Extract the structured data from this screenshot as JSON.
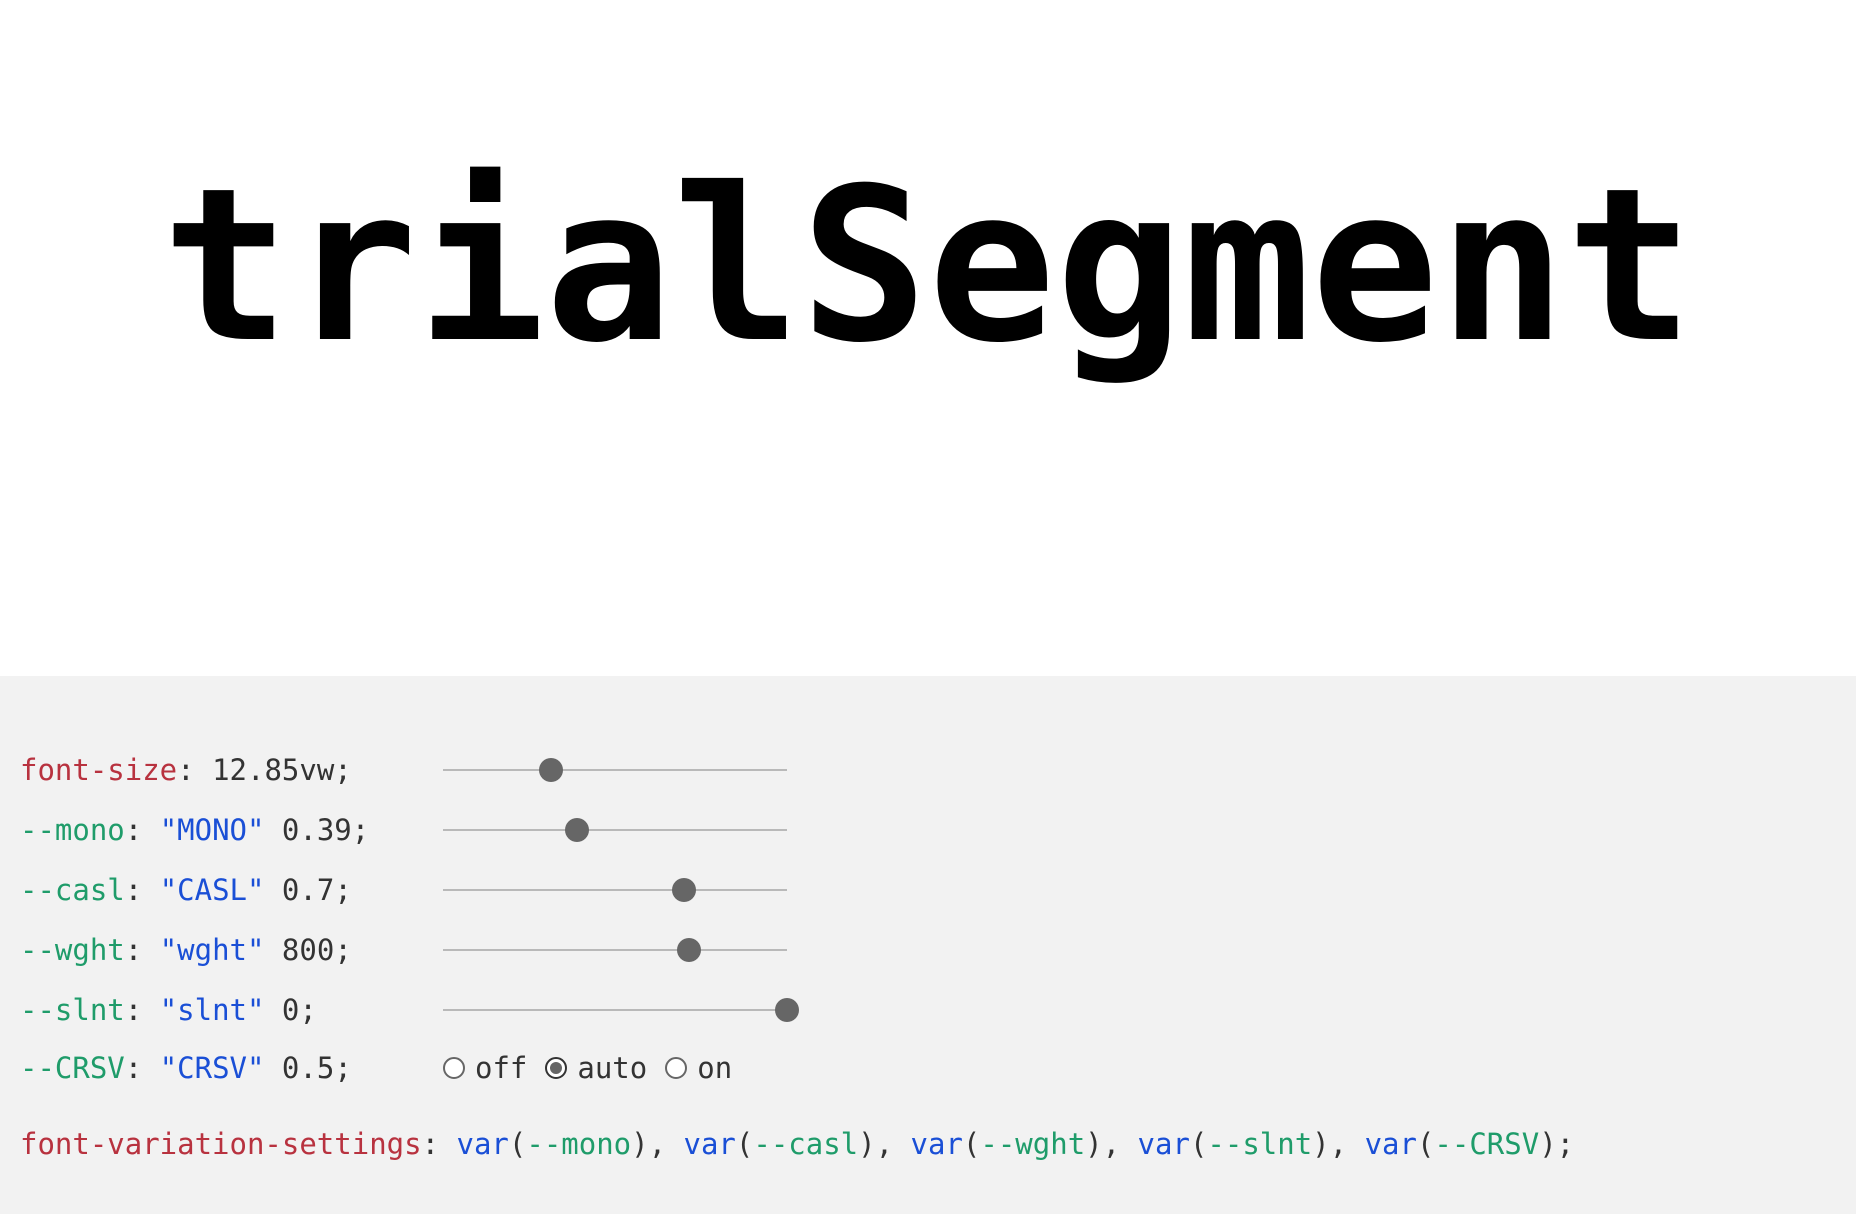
{
  "preview": {
    "text": "trialSegment"
  },
  "controls": [
    {
      "prop": "font-size",
      "kind": "prop",
      "tag": "",
      "value": "12.85vw",
      "fraction": 0.313
    },
    {
      "prop": "--mono",
      "kind": "var",
      "tag": "\"MONO\"",
      "value": "0.39",
      "fraction": 0.39
    },
    {
      "prop": "--casl",
      "kind": "var",
      "tag": "\"CASL\"",
      "value": "0.7",
      "fraction": 0.7
    },
    {
      "prop": "--wght",
      "kind": "var",
      "tag": "\"wght\"",
      "value": "800",
      "fraction": 0.714
    },
    {
      "prop": "--slnt",
      "kind": "var",
      "tag": "\"slnt\"",
      "value": "0",
      "fraction": 1.0
    }
  ],
  "crsv": {
    "prop": "--CRSV",
    "tag": "\"CRSV\"",
    "value": "0.5",
    "options": [
      "off",
      "auto",
      "on"
    ],
    "selected": "auto"
  },
  "fvs": {
    "prop": "font-variation-settings",
    "fn": "var",
    "args": [
      "--mono",
      "--casl",
      "--wght",
      "--slnt",
      "--CRSV"
    ]
  }
}
